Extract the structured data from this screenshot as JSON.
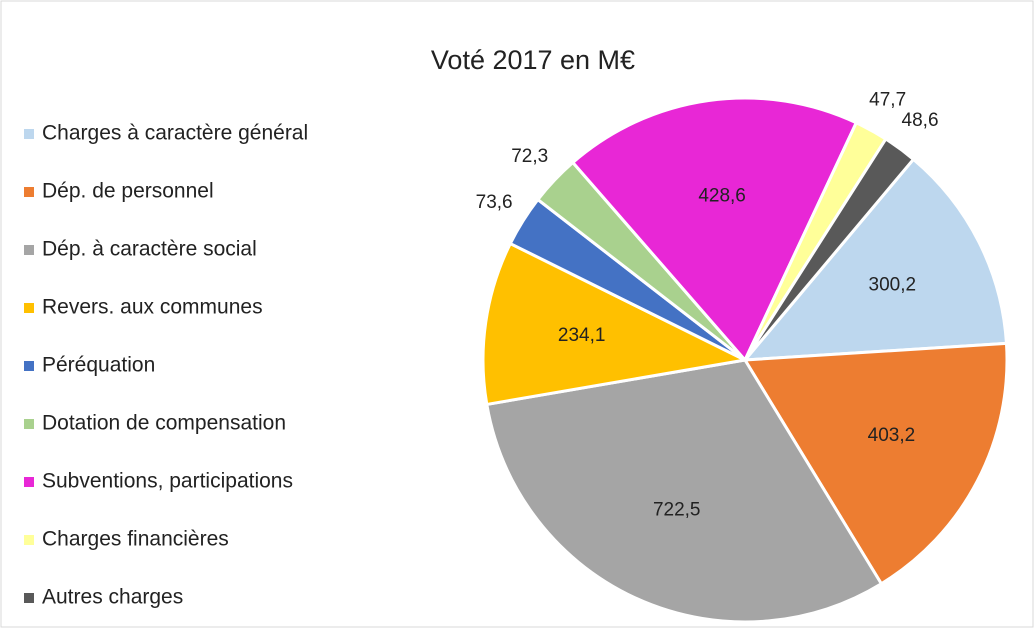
{
  "chart_data": {
    "type": "pie",
    "title": "Voté 2017 en M€",
    "categories": [
      "Charges à caractère général",
      "Dép. de personnel",
      "Dép. à caractère social",
      "Revers. aux communes",
      "Péréquation",
      "Dotation de compensation",
      "Subventions, participations",
      "Charges financières",
      "Autres charges"
    ],
    "values": [
      300.2,
      403.2,
      722.5,
      234.1,
      73.6,
      72.3,
      428.6,
      47.7,
      48.6
    ],
    "value_labels": [
      "300,2",
      "403,2",
      "722,5",
      "234,1",
      "73,6",
      "72,3",
      "428,6",
      "47,7",
      "48,6"
    ],
    "colors": [
      "#bdd7ee",
      "#ed7d31",
      "#a5a5a5",
      "#ffc000",
      "#4472c4",
      "#a9d18e",
      "#e827d6",
      "#ffff99",
      "#595959"
    ],
    "legend": "left"
  }
}
